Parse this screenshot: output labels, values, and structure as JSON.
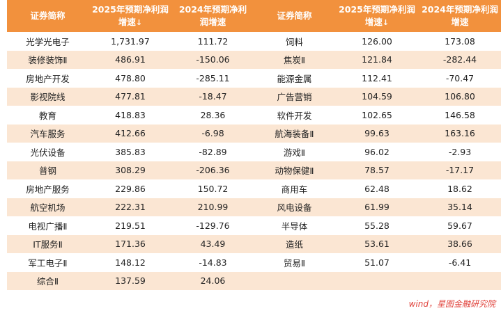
{
  "header": {
    "col_name": "证券简称",
    "col_2025": "2025年预期净利润增速",
    "col_2024": "2024年预期净利润增速",
    "sort_arrow": "↓"
  },
  "rows": [
    {
      "l_name": "光学光电子",
      "l_2025": "1,731.97",
      "l_2024": "111.72",
      "r_name": "饲料",
      "r_2025": "126.00",
      "r_2024": "173.08"
    },
    {
      "l_name": "装修装饰Ⅱ",
      "l_2025": "486.91",
      "l_2024": "-150.06",
      "r_name": "焦炭Ⅱ",
      "r_2025": "121.84",
      "r_2024": "-282.44"
    },
    {
      "l_name": "房地产开发",
      "l_2025": "478.80",
      "l_2024": "-285.11",
      "r_name": "能源金属",
      "r_2025": "112.41",
      "r_2024": "-70.47"
    },
    {
      "l_name": "影视院线",
      "l_2025": "477.81",
      "l_2024": "-18.47",
      "r_name": "广告营销",
      "r_2025": "104.59",
      "r_2024": "106.80"
    },
    {
      "l_name": "教育",
      "l_2025": "418.83",
      "l_2024": "28.36",
      "r_name": "软件开发",
      "r_2025": "102.65",
      "r_2024": "146.58"
    },
    {
      "l_name": "汽车服务",
      "l_2025": "412.66",
      "l_2024": "-6.98",
      "r_name": "航海装备Ⅱ",
      "r_2025": "99.63",
      "r_2024": "163.16"
    },
    {
      "l_name": "光伏设备",
      "l_2025": "385.83",
      "l_2024": "-82.89",
      "r_name": "游戏Ⅱ",
      "r_2025": "96.02",
      "r_2024": "-2.93"
    },
    {
      "l_name": "普钢",
      "l_2025": "308.29",
      "l_2024": "-206.36",
      "r_name": "动物保健Ⅱ",
      "r_2025": "78.57",
      "r_2024": "-17.17"
    },
    {
      "l_name": "房地产服务",
      "l_2025": "229.86",
      "l_2024": "150.72",
      "r_name": "商用车",
      "r_2025": "62.48",
      "r_2024": "18.62"
    },
    {
      "l_name": "航空机场",
      "l_2025": "222.31",
      "l_2024": "210.99",
      "r_name": "风电设备",
      "r_2025": "61.99",
      "r_2024": "35.14"
    },
    {
      "l_name": "电视广播Ⅱ",
      "l_2025": "219.51",
      "l_2024": "-129.76",
      "r_name": "半导体",
      "r_2025": "55.28",
      "r_2024": "59.67"
    },
    {
      "l_name": "IT服务Ⅱ",
      "l_2025": "171.36",
      "l_2024": "43.49",
      "r_name": "造纸",
      "r_2025": "53.61",
      "r_2024": "38.66"
    },
    {
      "l_name": "军工电子Ⅱ",
      "l_2025": "148.12",
      "l_2024": "-14.83",
      "r_name": "贸易Ⅱ",
      "r_2025": "51.07",
      "r_2024": "-6.41"
    },
    {
      "l_name": "综合Ⅱ",
      "l_2025": "137.59",
      "l_2024": "24.06",
      "r_name": "",
      "r_2025": "",
      "r_2024": ""
    }
  ],
  "source": "wind，星图金融研究院",
  "colors": {
    "header_bg": "#f2913d",
    "stripe": "#fbe6d3",
    "source_text": "#e0413a"
  }
}
